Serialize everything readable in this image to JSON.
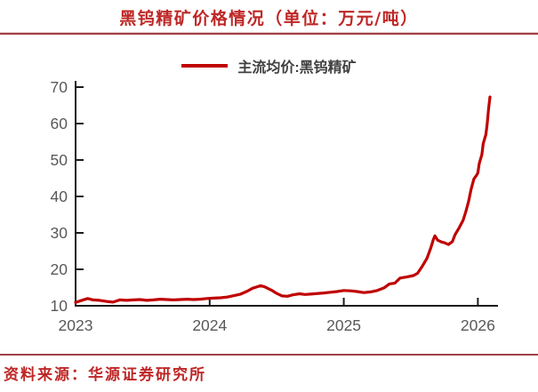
{
  "header": {
    "title": "黑钨精矿价格情况（单位：万元/吨）"
  },
  "legend": {
    "label": "主流均价:黑钨精矿"
  },
  "footer": {
    "source": "资料来源：华源证券研究所"
  },
  "colors": {
    "title_red": "#BE2726",
    "series_red": "#C00000",
    "divider_red": "#9E4046",
    "axis": "#1A1A1A",
    "tick_label": "#595959",
    "legend_text": "#404040"
  },
  "chart_data": {
    "type": "line",
    "title": "黑钨精矿价格情况（单位：万元/吨）",
    "ylabel": "万元/吨",
    "xlabel": "",
    "grid": false,
    "legend_position": "top-center",
    "xlim": [
      2023,
      2026.15
    ],
    "ylim": [
      10,
      70
    ],
    "xticks": [
      2023,
      2024,
      2025,
      2026
    ],
    "yticks": [
      10,
      20,
      30,
      40,
      50,
      60,
      70
    ],
    "series": [
      {
        "name": "主流均价:黑钨精矿",
        "x": [
          2023.0,
          2023.03,
          2023.09,
          2023.13,
          2023.18,
          2023.23,
          2023.28,
          2023.33,
          2023.38,
          2023.43,
          2023.48,
          2023.53,
          2023.58,
          2023.63,
          2023.68,
          2023.73,
          2023.78,
          2023.83,
          2023.88,
          2023.93,
          2023.98,
          2024.03,
          2024.08,
          2024.13,
          2024.17,
          2024.23,
          2024.28,
          2024.32,
          2024.38,
          2024.41,
          2024.46,
          2024.5,
          2024.54,
          2024.58,
          2024.62,
          2024.67,
          2024.71,
          2024.75,
          2024.81,
          2024.85,
          2024.9,
          2024.95,
          2025.0,
          2025.05,
          2025.1,
          2025.15,
          2025.2,
          2025.25,
          2025.3,
          2025.34,
          2025.38,
          2025.42,
          2025.47,
          2025.52,
          2025.55,
          2025.58,
          2025.62,
          2025.65,
          2025.67,
          2025.68,
          2025.7,
          2025.73,
          2025.75,
          2025.78,
          2025.81,
          2025.83,
          2025.86,
          2025.89,
          2025.91,
          2025.93,
          2025.95,
          2025.97,
          2025.99,
          2026.0,
          2026.01,
          2026.03,
          2026.04,
          2026.06,
          2026.07,
          2026.08,
          2026.09
        ],
        "y": [
          10.9,
          11.3,
          12.0,
          11.6,
          11.5,
          11.2,
          11.0,
          11.6,
          11.5,
          11.6,
          11.7,
          11.5,
          11.6,
          11.8,
          11.7,
          11.6,
          11.7,
          11.8,
          11.7,
          11.8,
          12.0,
          12.1,
          12.2,
          12.4,
          12.7,
          13.2,
          14.0,
          14.8,
          15.5,
          15.2,
          14.3,
          13.4,
          12.7,
          12.6,
          13.0,
          13.3,
          13.1,
          13.2,
          13.4,
          13.5,
          13.7,
          13.9,
          14.2,
          14.1,
          13.9,
          13.6,
          13.8,
          14.2,
          14.9,
          16.0,
          16.2,
          17.6,
          17.9,
          18.3,
          18.9,
          20.5,
          23.0,
          26.0,
          28.4,
          29.2,
          28.0,
          27.5,
          27.3,
          26.8,
          27.6,
          29.5,
          31.4,
          33.5,
          35.8,
          38.5,
          42.0,
          44.8,
          45.8,
          46.5,
          49.0,
          51.5,
          54.5,
          57.0,
          60.0,
          64.0,
          67.3
        ]
      }
    ]
  }
}
